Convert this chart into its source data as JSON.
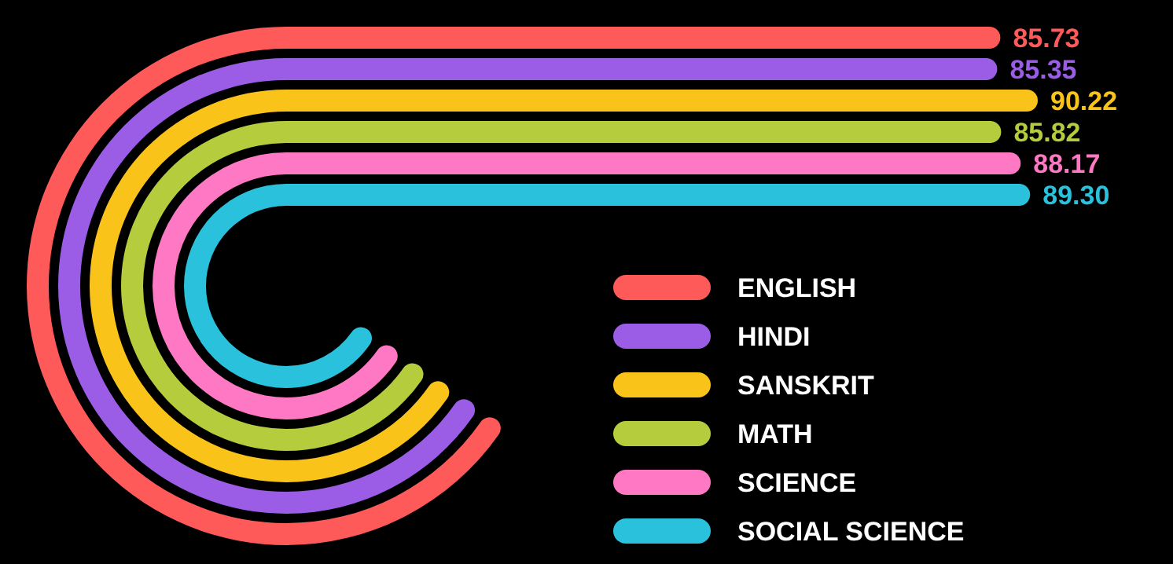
{
  "chart_data": {
    "type": "bar",
    "orientation": "horizontal",
    "stacked": true,
    "categories": [
      null,
      null,
      null,
      null,
      null,
      null
    ],
    "series": [
      {
        "name": "ENGLISH",
        "color": "#ff5a5a",
        "values": [
          85.73,
          null,
          null,
          null,
          null,
          null
        ],
        "value_labels": [
          "85.73",
          null,
          null,
          null,
          null,
          null
        ]
      },
      {
        "name": "HINDI",
        "color": "#9b5de5",
        "values": [
          null,
          85.35,
          null,
          null,
          null,
          null
        ],
        "value_labels": [
          null,
          "85.35",
          null,
          null,
          null,
          null
        ]
      },
      {
        "name": "SANSKRIT",
        "color": "#f9c31a",
        "values": [
          null,
          null,
          90.22,
          null,
          null,
          null
        ],
        "value_labels": [
          null,
          null,
          "90.22",
          null,
          null,
          null
        ]
      },
      {
        "name": "MATH",
        "color": "#b5cc3c",
        "values": [
          null,
          null,
          null,
          85.82,
          null,
          null
        ],
        "value_labels": [
          null,
          null,
          null,
          "85.82",
          null,
          null
        ]
      },
      {
        "name": "SCIENCE",
        "color": "#ff78c4",
        "values": [
          null,
          null,
          null,
          null,
          88.17,
          null
        ],
        "value_labels": [
          null,
          null,
          null,
          null,
          "88.17",
          null
        ]
      },
      {
        "name": "SOCIAL SCIENCE",
        "color": "#29c1dc",
        "values": [
          null,
          null,
          null,
          null,
          null,
          89.3
        ],
        "value_labels": [
          null,
          null,
          null,
          null,
          null,
          "89.30"
        ]
      }
    ],
    "legend": "bottom right"
  }
}
